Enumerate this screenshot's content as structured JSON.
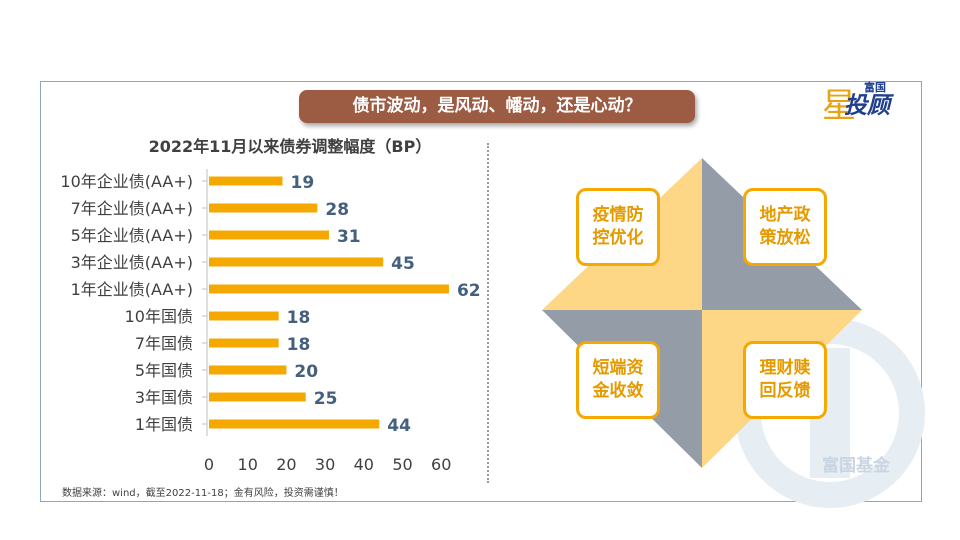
{
  "banner": {
    "text": "债市波动，是风动、幡动，还是心动？"
  },
  "logo": {
    "small": "富国",
    "main": "投顾",
    "star_char": "星"
  },
  "chart_data": {
    "type": "bar",
    "orientation": "horizontal",
    "title": "2022年11月以来债券调整幅度（BP）",
    "categories": [
      "10年企业债(AA+)",
      "7年企业债(AA+)",
      "5年企业债(AA+)",
      "3年企业债(AA+)",
      "1年企业债(AA+)",
      "10年国债",
      "7年国债",
      "5年国债",
      "3年国债",
      "1年国债"
    ],
    "values": [
      19,
      28,
      31,
      45,
      62,
      18,
      18,
      20,
      25,
      44
    ],
    "xlim": [
      0,
      60
    ],
    "xticks": [
      0,
      10,
      20,
      30,
      40,
      50,
      60
    ],
    "bar_color": "#f5a800",
    "label_color": "#44607e",
    "grid": false
  },
  "footer": "数据来源：wind，截至2022-11-18；金有风险，投资需谨慎！",
  "diagram": {
    "colors": {
      "yellow": "#fdd686",
      "gray": "#939ca7",
      "card_border": "#f5a800",
      "card_text": "#e59a00"
    },
    "cards": [
      {
        "line1": "疫情防",
        "line2": "控优化"
      },
      {
        "line1": "地产政",
        "line2": "策放松"
      },
      {
        "line1": "短端资",
        "line2": "金收敛"
      },
      {
        "line1": "理财赎",
        "line2": "回反馈"
      }
    ]
  },
  "watermark": {
    "text": "富国基金"
  }
}
